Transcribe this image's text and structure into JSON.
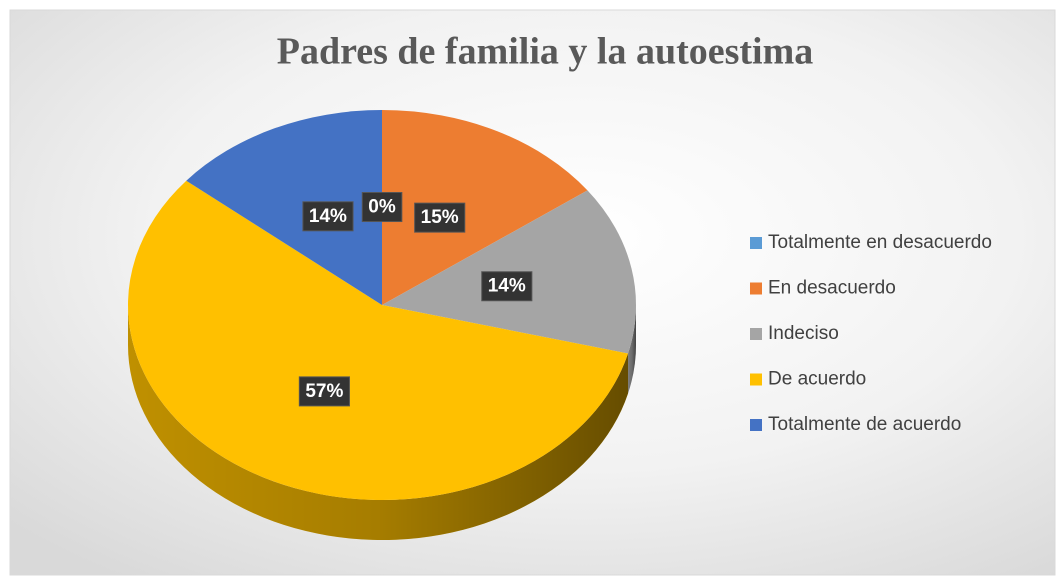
{
  "chart_data": {
    "type": "pie",
    "title": "Padres de familia y la autoestima",
    "categories": [
      "Totalmente en desacuerdo",
      "En desacuerdo",
      "Indeciso",
      "De acuerdo",
      "Totalmente de acuerdo"
    ],
    "values": [
      0,
      15,
      14,
      57,
      14
    ],
    "value_labels": [
      "0%",
      "15%",
      "14%",
      "57%",
      "14%"
    ],
    "colors": [
      "#5b9bd5",
      "#ed7d31",
      "#a5a5a5",
      "#ffc000",
      "#4472c4"
    ],
    "legend": "right"
  }
}
